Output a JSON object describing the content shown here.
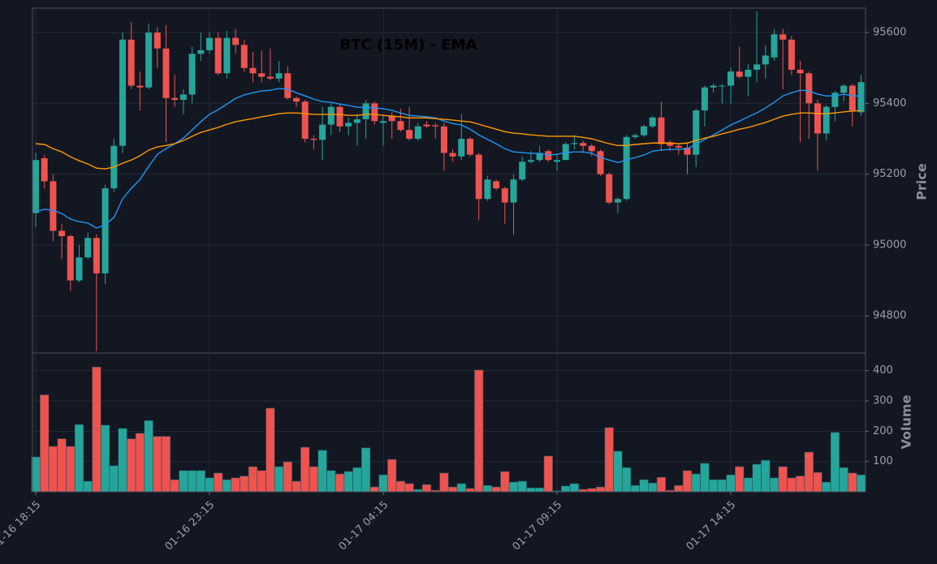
{
  "chart_data": {
    "type": "candlestick",
    "title": "BTC (15M) - EMA",
    "ylabel": "Price",
    "up_color": "#26a69a",
    "down_color": "#ef5350",
    "grid": true,
    "x": [
      "01-16 18:15",
      "01-16 18:30",
      "01-16 18:45",
      "01-16 19:00",
      "01-16 19:15",
      "01-16 19:30",
      "01-16 19:45",
      "01-16 20:00",
      "01-16 20:15",
      "01-16 20:30",
      "01-16 20:45",
      "01-16 21:00",
      "01-16 21:15",
      "01-16 21:30",
      "01-16 21:45",
      "01-16 22:00",
      "01-16 22:15",
      "01-16 22:30",
      "01-16 22:45",
      "01-16 23:00",
      "01-16 23:15",
      "01-16 23:30",
      "01-16 23:45",
      "01-17 00:00",
      "01-17 00:15",
      "01-17 00:30",
      "01-17 00:45",
      "01-17 01:00",
      "01-17 01:15",
      "01-17 01:30",
      "01-17 01:45",
      "01-17 02:00",
      "01-17 02:15",
      "01-17 02:30",
      "01-17 02:45",
      "01-17 03:00",
      "01-17 03:15",
      "01-17 03:30",
      "01-17 03:45",
      "01-17 04:00",
      "01-17 04:15",
      "01-17 04:30",
      "01-17 04:45",
      "01-17 05:00",
      "01-17 05:15",
      "01-17 05:30",
      "01-17 05:45",
      "01-17 06:00",
      "01-17 06:15",
      "01-17 06:30",
      "01-17 06:45",
      "01-17 07:00",
      "01-17 07:15",
      "01-17 07:30",
      "01-17 07:45",
      "01-17 08:00",
      "01-17 08:15",
      "01-17 08:30",
      "01-17 08:45",
      "01-17 09:00",
      "01-17 09:15",
      "01-17 09:30",
      "01-17 09:45",
      "01-17 10:00",
      "01-17 10:15",
      "01-17 10:30",
      "01-17 10:45",
      "01-17 11:00",
      "01-17 11:15",
      "01-17 11:30",
      "01-17 11:45",
      "01-17 12:00",
      "01-17 12:15",
      "01-17 12:30",
      "01-17 12:45",
      "01-17 13:00",
      "01-17 13:15",
      "01-17 13:30",
      "01-17 13:45",
      "01-17 14:00",
      "01-17 14:15",
      "01-17 14:30",
      "01-17 14:45",
      "01-17 15:00",
      "01-17 15:15",
      "01-17 15:30",
      "01-17 15:45",
      "01-17 16:00",
      "01-17 16:15",
      "01-17 16:30",
      "01-17 16:45",
      "01-17 17:00",
      "01-17 17:15",
      "01-17 17:30",
      "01-17 17:45",
      "01-17 18:00"
    ],
    "open": [
      95090,
      95245,
      95180,
      95040,
      95025,
      94900,
      94965,
      95020,
      94920,
      95160,
      95280,
      95580,
      95450,
      95445,
      95600,
      95555,
      95415,
      95410,
      95425,
      95540,
      95550,
      95585,
      95485,
      95585,
      95565,
      95500,
      95485,
      95475,
      95470,
      95485,
      95415,
      95405,
      95300,
      95297,
      95340,
      95390,
      95335,
      95345,
      95355,
      95400,
      95345,
      95365,
      95350,
      95325,
      95300,
      95340,
      95338,
      95335,
      95260,
      95250,
      95300,
      95255,
      95130,
      95180,
      95160,
      95120,
      95185,
      95235,
      95240,
      95265,
      95235,
      95240,
      95285,
      95288,
      95280,
      95265,
      95200,
      95120,
      95130,
      95305,
      95310,
      95335,
      95360,
      95290,
      95280,
      95275,
      95255,
      95380,
      95445,
      95448,
      95450,
      95490,
      95475,
      95495,
      95510,
      95530,
      95595,
      95580,
      95495,
      95485,
      95400,
      95315,
      95390,
      95430,
      95450,
      95375
    ],
    "high": [
      95260,
      95255,
      95200,
      95060,
      95030,
      95000,
      95035,
      95030,
      95170,
      95300,
      95600,
      95630,
      95490,
      95625,
      95615,
      95620,
      95480,
      95440,
      95560,
      95600,
      95600,
      95600,
      95605,
      95610,
      95580,
      95545,
      95550,
      95555,
      95520,
      95505,
      95420,
      95410,
      95310,
      95390,
      95400,
      95400,
      95360,
      95370,
      95410,
      95405,
      95370,
      95375,
      95385,
      95390,
      95345,
      95350,
      95345,
      95345,
      95270,
      95370,
      95305,
      95260,
      95195,
      95185,
      95165,
      95200,
      95250,
      95265,
      95280,
      95270,
      95255,
      95290,
      95310,
      95295,
      95285,
      95270,
      95205,
      95135,
      95310,
      95315,
      95340,
      95365,
      95405,
      95295,
      95285,
      95290,
      95385,
      95450,
      95455,
      95455,
      95500,
      95560,
      95510,
      95660,
      95565,
      95610,
      95610,
      95590,
      95520,
      95490,
      95410,
      95395,
      95435,
      95455,
      95455,
      95480
    ],
    "low": [
      95050,
      95160,
      95010,
      94960,
      94870,
      94895,
      94960,
      94700,
      94890,
      95150,
      95260,
      95440,
      95380,
      95440,
      95500,
      95290,
      95390,
      95370,
      95400,
      95520,
      95540,
      95480,
      95470,
      95540,
      95490,
      95460,
      95460,
      95465,
      95460,
      95410,
      95390,
      95290,
      95270,
      95240,
      95310,
      95320,
      95310,
      95280,
      95300,
      95340,
      95280,
      95300,
      95320,
      95295,
      95295,
      95330,
      95300,
      95210,
      95235,
      95240,
      95250,
      95070,
      95125,
      95155,
      95060,
      95030,
      95180,
      95230,
      95235,
      95235,
      95210,
      95240,
      95270,
      95260,
      95250,
      95195,
      95115,
      95090,
      95125,
      95300,
      95305,
      95330,
      95265,
      95265,
      95255,
      95200,
      95220,
      95335,
      95430,
      95400,
      95400,
      95470,
      95420,
      95460,
      95470,
      95520,
      95440,
      95480,
      95290,
      95300,
      95210,
      95295,
      95350,
      95405,
      95335,
      95365
    ],
    "close": [
      95240,
      95180,
      95040,
      95025,
      94900,
      94965,
      95020,
      94920,
      95160,
      95280,
      95580,
      95450,
      95445,
      95600,
      95555,
      95415,
      95410,
      95425,
      95540,
      95550,
      95585,
      95485,
      95585,
      95565,
      95500,
      95485,
      95475,
      95470,
      95485,
      95415,
      95405,
      95300,
      95297,
      95340,
      95390,
      95335,
      95345,
      95355,
      95400,
      95350,
      95350,
      95350,
      95325,
      95300,
      95335,
      95335,
      95335,
      95260,
      95250,
      95300,
      95255,
      95130,
      95185,
      95160,
      95120,
      95185,
      95235,
      95240,
      95260,
      95240,
      95240,
      95285,
      95288,
      95280,
      95265,
      95200,
      95120,
      95130,
      95305,
      95310,
      95335,
      95360,
      95285,
      95280,
      95275,
      95255,
      95380,
      95445,
      95450,
      95450,
      95490,
      95475,
      95495,
      95510,
      95535,
      95595,
      95580,
      95495,
      95485,
      95400,
      95315,
      95390,
      95430,
      95450,
      95380,
      95460
    ],
    "series": [
      {
        "color": "#2196f3",
        "values": [
          95094,
          95101,
          95098,
          95089,
          95073,
          95066,
          95062,
          95048,
          95057,
          95078,
          95130,
          95160,
          95185,
          95222,
          95256,
          95272,
          95286,
          95302,
          95325,
          95348,
          95369,
          95382,
          95398,
          95414,
          95424,
          95430,
          95435,
          95437,
          95442,
          95440,
          95430,
          95421,
          95412,
          95405,
          95403,
          95398,
          95394,
          95389,
          95389,
          95387,
          95385,
          95380,
          95373,
          95366,
          95364,
          95362,
          95359,
          95350,
          95343,
          95339,
          95327,
          95311,
          95298,
          95286,
          95272,
          95263,
          95261,
          95259,
          95259,
          95254,
          95256,
          95261,
          95263,
          95263,
          95259,
          95247,
          95240,
          95233,
          95240,
          95247,
          95254,
          95265,
          95268,
          95270,
          95270,
          95272,
          95284,
          95298,
          95311,
          95325,
          95339,
          95350,
          95362,
          95373,
          95387,
          95403,
          95421,
          95430,
          95437,
          95435,
          95426,
          95421,
          95421,
          95426,
          95421,
          95421
        ]
      },
      {
        "color": "#ff9800",
        "values": [
          95286,
          95284,
          95272,
          95263,
          95249,
          95238,
          95229,
          95217,
          95215,
          95220,
          95231,
          95240,
          95252,
          95268,
          95277,
          95281,
          95286,
          95295,
          95307,
          95318,
          95325,
          95332,
          95341,
          95348,
          95353,
          95357,
          95362,
          95366,
          95371,
          95373,
          95373,
          95371,
          95369,
          95369,
          95369,
          95369,
          95366,
          95366,
          95369,
          95369,
          95366,
          95364,
          95362,
          95359,
          95359,
          95359,
          95357,
          95355,
          95353,
          95350,
          95348,
          95341,
          95334,
          95327,
          95320,
          95316,
          95314,
          95311,
          95309,
          95307,
          95307,
          95307,
          95307,
          95304,
          95300,
          95293,
          95286,
          95281,
          95281,
          95284,
          95286,
          95288,
          95288,
          95288,
          95286,
          95288,
          95295,
          95302,
          95307,
          95314,
          95320,
          95327,
          95332,
          95339,
          95346,
          95355,
          95364,
          95369,
          95373,
          95373,
          95371,
          95371,
          95373,
          95376,
          95378,
          95380
        ]
      }
    ],
    "ylim": [
      94695,
      95669
    ],
    "yticks": [
      94800,
      95000,
      95200,
      95400,
      95600
    ],
    "volume": {
      "ylabel": "Volume",
      "ylim": [
        0,
        458
      ],
      "yticks": [
        100,
        200,
        300,
        400
      ],
      "values": [
        115,
        320,
        150,
        175,
        150,
        222,
        35,
        412,
        220,
        86,
        209,
        175,
        193,
        235,
        183,
        183,
        40,
        70,
        70,
        70,
        46,
        62,
        40,
        46,
        52,
        83,
        70,
        276,
        83,
        99,
        35,
        147,
        83,
        137,
        70,
        59,
        67,
        80,
        145,
        16,
        56,
        107,
        35,
        27,
        8,
        24,
        5,
        62,
        16,
        27,
        11,
        402,
        21,
        16,
        67,
        32,
        35,
        13,
        13,
        118,
        3,
        19,
        27,
        8,
        11,
        16,
        212,
        134,
        80,
        21,
        40,
        29,
        48,
        5,
        21,
        70,
        59,
        94,
        40,
        40,
        56,
        83,
        46,
        91,
        104,
        46,
        83,
        46,
        52,
        131,
        64,
        32,
        196,
        80,
        62,
        56
      ]
    }
  }
}
